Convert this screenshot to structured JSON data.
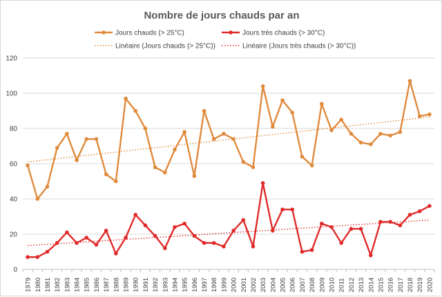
{
  "chart_data": {
    "type": "line",
    "title": "Nombre de jours chauds par an",
    "xlabel": "",
    "ylabel": "",
    "ylim": [
      0,
      120
    ],
    "yticks": [
      0,
      20,
      40,
      60,
      80,
      100,
      120
    ],
    "grid": true,
    "legend_position": "top",
    "categories": [
      "1979",
      "1980",
      "1981",
      "1982",
      "1983",
      "1984",
      "1985",
      "1986",
      "1987",
      "1988",
      "1989",
      "1990",
      "1991",
      "1992",
      "1993",
      "1994",
      "1995",
      "1996",
      "1997",
      "1998",
      "1999",
      "2000",
      "2001",
      "2002",
      "2003",
      "2004",
      "2005",
      "2006",
      "2007",
      "2008",
      "2009",
      "2010",
      "2011",
      "2012",
      "2013",
      "2014",
      "2015",
      "2016",
      "2017",
      "2018",
      "2019",
      "2020"
    ],
    "series": [
      {
        "name": "Jours chauds (> 25°C)",
        "color": "#e08a3c",
        "values": [
          59,
          40,
          47,
          69,
          77,
          62,
          74,
          74,
          54,
          50,
          97,
          90,
          80,
          58,
          55,
          68,
          78,
          53,
          90,
          74,
          77,
          74,
          61,
          58,
          104,
          81,
          96,
          89,
          64,
          59,
          94,
          79,
          85,
          77,
          72,
          71,
          77,
          76,
          78,
          107,
          87,
          88
        ]
      },
      {
        "name": "Jours très chauds (> 30°C)",
        "color": "#e02a2a",
        "values": [
          7,
          7,
          10,
          15,
          21,
          15,
          18,
          14,
          22,
          9,
          18,
          31,
          25,
          19,
          12,
          24,
          26,
          19,
          15,
          15,
          13,
          22,
          28,
          13,
          49,
          22,
          34,
          34,
          10,
          11,
          26,
          24,
          15,
          23,
          23,
          8,
          27,
          27,
          25,
          31,
          33,
          36
        ]
      }
    ],
    "trendlines": [
      {
        "name": "Linéaire (Jours chauds (> 25°C))",
        "color": "#e08a3c",
        "start": 61,
        "end": 86.5
      },
      {
        "name": "Linéaire (Jours très chauds (> 30°C))",
        "color": "#e02a2a",
        "start": 13.5,
        "end": 28
      }
    ]
  }
}
